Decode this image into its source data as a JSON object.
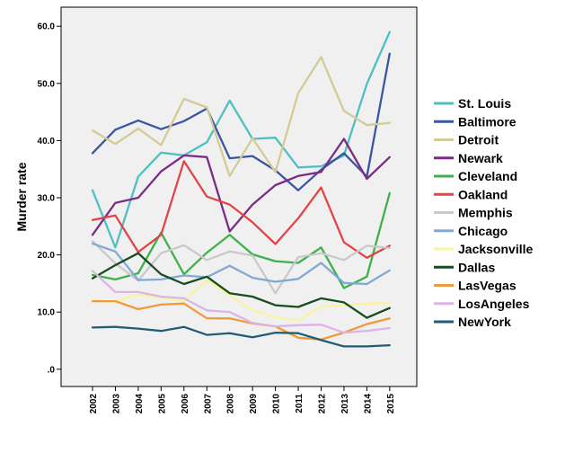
{
  "chart_data": {
    "type": "line",
    "title": "",
    "xlabel": "",
    "ylabel": "Murder rate",
    "x": [
      "2002",
      "2003",
      "2004",
      "2005",
      "2006",
      "2007",
      "2008",
      "2009",
      "2010",
      "2011",
      "2012",
      "2013",
      "2014",
      "2015"
    ],
    "ylim": [
      0,
      62
    ],
    "yticks": [
      ".0",
      "10.0",
      "20.0",
      "30.0",
      "40.0",
      "50.0",
      "60.0"
    ],
    "ytick_values": [
      0,
      10,
      20,
      30,
      40,
      50,
      60
    ],
    "grid": false,
    "legend": "right",
    "series": [
      {
        "name": "St. Louis",
        "color": "#4fbfc1",
        "values": [
          31.3,
          21.3,
          33.7,
          37.9,
          37.4,
          39.7,
          47.0,
          40.3,
          40.5,
          35.3,
          35.5,
          37.4,
          49.9,
          59.0
        ]
      },
      {
        "name": "Baltimore",
        "color": "#3a56a2",
        "values": [
          37.8,
          41.9,
          43.5,
          42.0,
          43.4,
          45.6,
          36.9,
          37.3,
          34.8,
          31.3,
          34.9,
          37.8,
          33.7,
          55.2
        ]
      },
      {
        "name": "Detroit",
        "color": "#d3cb95",
        "values": [
          41.8,
          39.4,
          42.1,
          39.2,
          47.3,
          45.8,
          33.8,
          40.4,
          34.5,
          48.3,
          54.6,
          45.2,
          42.7,
          43.1
        ]
      },
      {
        "name": "Newark",
        "color": "#7b2d85",
        "values": [
          23.5,
          29.1,
          30.0,
          34.6,
          37.4,
          37.1,
          24.1,
          28.8,
          32.2,
          33.8,
          34.5,
          40.3,
          33.3,
          37.1
        ]
      },
      {
        "name": "Cleveland",
        "color": "#3fb04a",
        "values": [
          16.5,
          15.7,
          16.8,
          23.9,
          16.6,
          20.4,
          23.5,
          20.1,
          18.9,
          18.6,
          21.3,
          14.2,
          16.2,
          30.8
        ]
      },
      {
        "name": "Oakland",
        "color": "#e04548",
        "values": [
          26.1,
          26.9,
          20.5,
          23.5,
          36.4,
          30.2,
          28.8,
          25.7,
          21.9,
          26.4,
          31.8,
          22.2,
          19.5,
          21.6
        ]
      },
      {
        "name": "Memphis",
        "color": "#c9c9c9",
        "values": [
          22.4,
          18.5,
          15.5,
          20.3,
          21.7,
          19.1,
          20.6,
          19.9,
          13.3,
          19.6,
          20.3,
          19.1,
          21.6,
          21.2
        ]
      },
      {
        "name": "Chicago",
        "color": "#7faad3",
        "values": [
          22.0,
          20.6,
          15.6,
          15.7,
          16.4,
          16.1,
          18.1,
          16.0,
          15.3,
          15.8,
          18.6,
          15.1,
          14.9,
          17.3
        ]
      },
      {
        "name": "Jacksonville",
        "color": "#f7f39f",
        "values": [
          12.0,
          11.8,
          13.1,
          12.5,
          11.9,
          15.6,
          12.9,
          10.3,
          9.1,
          8.5,
          11.0,
          11.2,
          11.5,
          11.6
        ]
      },
      {
        "name": "Dallas",
        "color": "#154d20",
        "values": [
          15.9,
          18.2,
          20.3,
          16.6,
          14.9,
          16.2,
          13.3,
          12.7,
          11.2,
          10.9,
          12.4,
          11.7,
          9.0,
          10.7
        ]
      },
      {
        "name": "LasVegas",
        "color": "#ee9a3d",
        "values": [
          11.9,
          11.9,
          10.5,
          11.3,
          11.5,
          8.9,
          8.9,
          8.0,
          7.5,
          5.5,
          5.2,
          6.4,
          7.9,
          8.9
        ]
      },
      {
        "name": "LosAngeles",
        "color": "#dcb5e6",
        "values": [
          17.2,
          13.5,
          13.5,
          12.7,
          12.4,
          10.3,
          10.0,
          8.1,
          7.5,
          7.7,
          7.8,
          6.4,
          6.7,
          7.2
        ]
      },
      {
        "name": "NewYork",
        "color": "#235d74",
        "values": [
          7.3,
          7.4,
          7.1,
          6.7,
          7.4,
          6.0,
          6.3,
          5.6,
          6.4,
          6.3,
          5.1,
          4.0,
          4.0,
          4.2
        ]
      }
    ]
  },
  "colors": {
    "plot_background": "#f0f0f0",
    "axis": "#000000"
  }
}
